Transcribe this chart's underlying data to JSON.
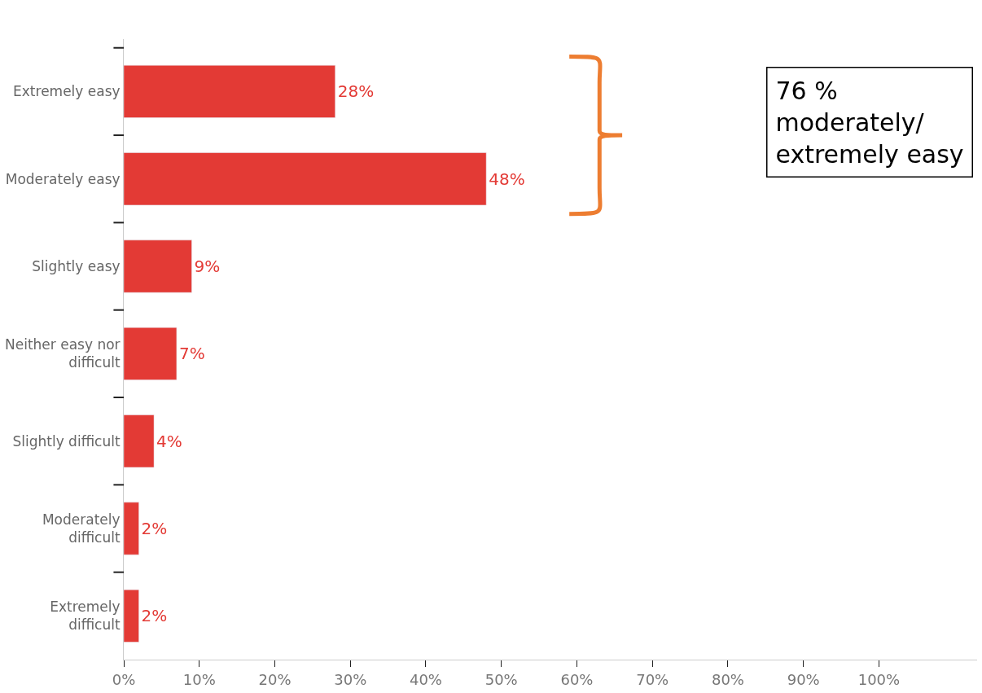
{
  "chart_data": {
    "type": "bar",
    "orientation": "horizontal",
    "categories": [
      "Extremely easy",
      "Moderately easy",
      "Slightly easy",
      "Neither easy nor difficult",
      "Slightly difficult",
      "Moderately difficult",
      "Extremely difficult"
    ],
    "values": [
      28,
      48,
      9,
      7,
      4,
      2,
      2
    ],
    "value_labels": [
      "28%",
      "48%",
      "9%",
      "7%",
      "4%",
      "2%",
      "2%"
    ],
    "color": "#e33a35",
    "xlim": [
      0,
      113
    ],
    "xticks": [
      {
        "value": 0,
        "label": "0%"
      },
      {
        "value": 10,
        "label": "10%"
      },
      {
        "value": 20,
        "label": "20%"
      },
      {
        "value": 30,
        "label": "30%"
      },
      {
        "value": 40,
        "label": "40%"
      },
      {
        "value": 50,
        "label": "50%"
      },
      {
        "value": 60,
        "label": "60%"
      },
      {
        "value": 70,
        "label": "70%"
      },
      {
        "value": 80,
        "label": "80%"
      },
      {
        "value": 90,
        "label": "90%"
      },
      {
        "value": 100,
        "label": "100%"
      }
    ],
    "annotations": [
      "76 %\nmoderately/\nextremely easy"
    ]
  }
}
